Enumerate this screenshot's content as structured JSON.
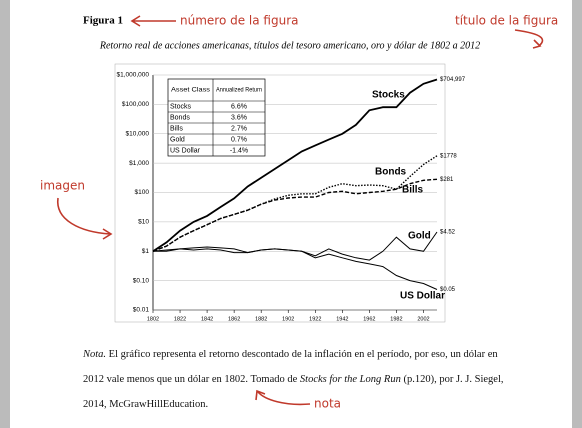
{
  "annotations": {
    "figure_number": "número de la figura",
    "figure_title": "título de la figura",
    "image": "imagen",
    "note": "nota"
  },
  "figure": {
    "label": "Figura 1",
    "title": "Retorno real de acciones americanas, títulos del tesoro americano, oro y dólar de 1802 a 2012"
  },
  "chart_data": {
    "type": "line",
    "log_scale": true,
    "x": [
      1802,
      1812,
      1822,
      1832,
      1842,
      1852,
      1862,
      1872,
      1882,
      1892,
      1902,
      1912,
      1922,
      1932,
      1942,
      1952,
      1962,
      1972,
      1982,
      1992,
      2002,
      2012
    ],
    "xlim": [
      1802,
      2012
    ],
    "xticks": [
      1802,
      1822,
      1842,
      1862,
      1882,
      1902,
      1922,
      1942,
      1962,
      1982,
      2002
    ],
    "ylim": [
      0.01,
      1000000
    ],
    "yticks": [
      {
        "value": 1000000,
        "label": "$1,000,000"
      },
      {
        "value": 100000,
        "label": "$100,000"
      },
      {
        "value": 10000,
        "label": "$10,000"
      },
      {
        "value": 1000,
        "label": "$1,000"
      },
      {
        "value": 100,
        "label": "$100"
      },
      {
        "value": 10,
        "label": "$10"
      },
      {
        "value": 1,
        "label": "$1"
      },
      {
        "value": 0.1,
        "label": "$0.10"
      },
      {
        "value": 0.01,
        "label": "$0.01"
      }
    ],
    "grid": true,
    "series": [
      {
        "name": "Stocks",
        "color": "#000000",
        "line_style": "solid-thick",
        "end_label": "$704,997",
        "values": [
          1,
          2,
          5,
          10,
          16,
          32,
          63,
          160,
          320,
          630,
          1260,
          2500,
          4000,
          6300,
          10000,
          20000,
          63000,
          80000,
          80000,
          250000,
          500000,
          704997
        ]
      },
      {
        "name": "Bonds",
        "color": "#000000",
        "line_style": "dotted",
        "end_label": "$1778",
        "values": [
          1,
          1.5,
          3,
          5,
          8,
          13,
          18,
          25,
          40,
          60,
          80,
          90,
          90,
          150,
          200,
          170,
          180,
          170,
          130,
          350,
          900,
          1778
        ]
      },
      {
        "name": "Bills",
        "color": "#000000",
        "line_style": "dashed",
        "end_label": "$281",
        "values": [
          1,
          1.5,
          3,
          5,
          8,
          13,
          18,
          25,
          40,
          55,
          65,
          70,
          70,
          100,
          110,
          90,
          100,
          110,
          130,
          200,
          260,
          281
        ]
      },
      {
        "name": "Gold",
        "color": "#000000",
        "line_style": "solid",
        "end_label": "$4.52",
        "values": [
          1,
          1.1,
          1.2,
          1.1,
          1.2,
          1.1,
          0.9,
          0.9,
          1.1,
          1.2,
          1.1,
          1,
          0.7,
          1.2,
          0.8,
          0.6,
          0.5,
          1,
          3,
          1.2,
          1,
          4.52
        ]
      },
      {
        "name": "US Dollar",
        "color": "#000000",
        "line_style": "solid",
        "end_label": "$0.05",
        "values": [
          1,
          1,
          1.2,
          1.3,
          1.4,
          1.3,
          1.2,
          0.9,
          1.1,
          1.2,
          1.1,
          1,
          0.6,
          0.8,
          0.6,
          0.45,
          0.37,
          0.3,
          0.15,
          0.1,
          0.08,
          0.05
        ]
      }
    ],
    "table": {
      "header": [
        "Asset Class",
        "Annualized Return"
      ],
      "rows": [
        [
          "Stocks",
          "6.6%"
        ],
        [
          "Bonds",
          "3.6%"
        ],
        [
          "Bills",
          "2.7%"
        ],
        [
          "Gold",
          "0.7%"
        ],
        [
          "US Dollar",
          "-1.4%"
        ]
      ]
    }
  },
  "note": [
    "Nota.",
    " El gráfico representa el retorno descontado de la inflación en el período, por eso, un dólar en 2012 vale menos que un dólar en 1802. Tomado de ",
    "Stocks for the Long Run",
    " (p.120), por J. J. Siegel, 2014, McGrawHillEducation."
  ]
}
